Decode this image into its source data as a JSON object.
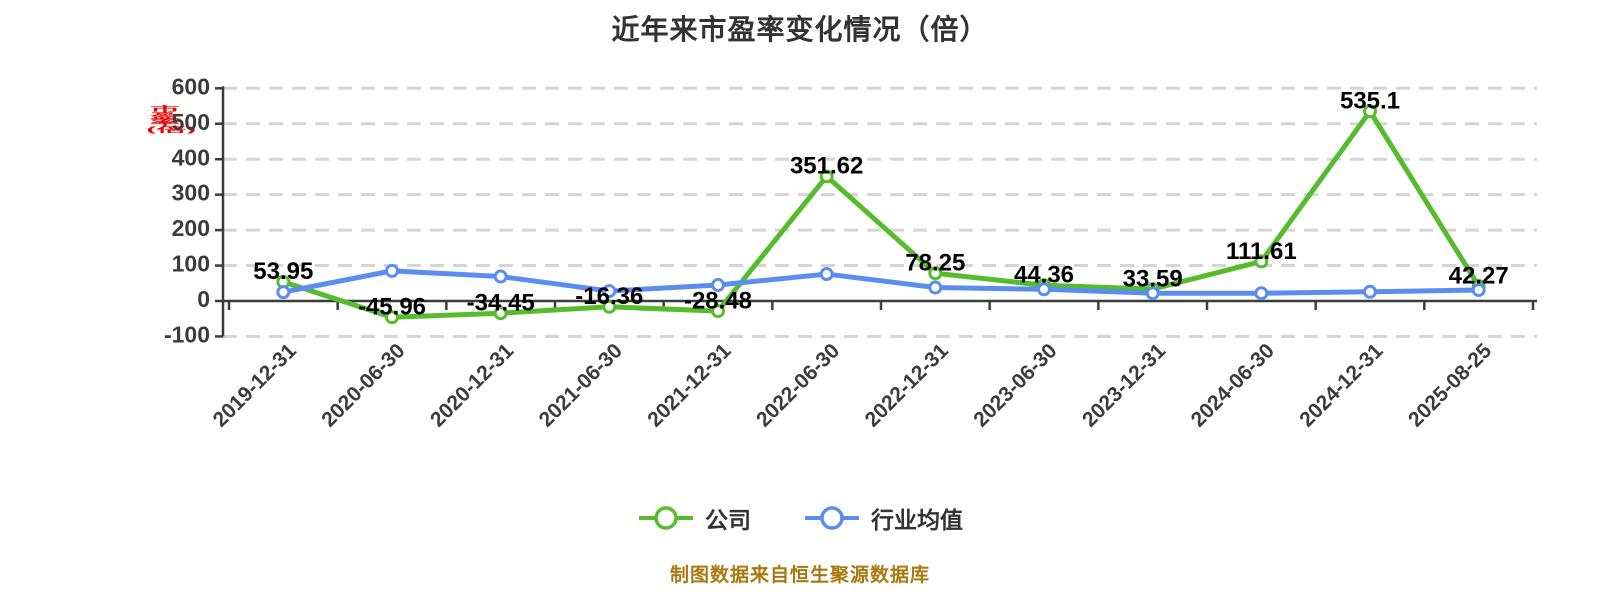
{
  "title": "近年来市盈率变化情况（倍）",
  "y_axis_label": "市盈率(倍)",
  "source_note": "制图数据来自恒生聚源数据库",
  "legend_items": [
    {
      "key": "company",
      "label": "公司",
      "color": "#55bd2b"
    },
    {
      "key": "industry",
      "label": "行业均值",
      "color": "#5b8cf0"
    }
  ],
  "colors": {
    "company": "#55bd2b",
    "industry": "#5b8cf0",
    "grid": "#d5d5d5",
    "axis": "#3c3c3c",
    "tick_text": "#3c3c3c",
    "title": "#333333",
    "data_label": "#000000",
    "source": "#a8790f",
    "y_axis_label": "#ee0000",
    "marker_fill": "#ffffff"
  },
  "chart_data": {
    "type": "line",
    "title": "近年来市盈率变化情况（倍）",
    "xlabel": "",
    "ylabel": "市盈率(倍)",
    "categories": [
      "2019-12-31",
      "2020-06-30",
      "2020-12-31",
      "2021-06-30",
      "2021-12-31",
      "2022-06-30",
      "2022-12-31",
      "2023-06-30",
      "2023-12-31",
      "2024-06-30",
      "2024-12-31",
      "2025-08-25"
    ],
    "series": [
      {
        "key": "company",
        "name": "公司",
        "color": "#55bd2b",
        "values": [
          53.95,
          -45.96,
          -34.45,
          -16.36,
          -28.48,
          351.62,
          78.25,
          44.36,
          33.59,
          111.61,
          535.1,
          42.27
        ],
        "labels": [
          "53.95",
          "-45.96",
          "-34.45",
          "-16.36",
          "-28.48",
          "351.62",
          "78.25",
          "44.36",
          "33.59",
          "111.61",
          "535.1",
          "42.27"
        ],
        "show_labels": true
      },
      {
        "key": "industry",
        "name": "行业均值",
        "color": "#5b8cf0",
        "values": [
          25,
          85,
          69,
          28,
          45,
          76,
          38,
          33,
          22,
          22,
          26,
          31
        ],
        "labels": [],
        "show_labels": false,
        "values_estimated_from_pixels": true
      }
    ],
    "yticks": [
      600,
      500,
      400,
      300,
      200,
      100,
      0,
      -100
    ],
    "ylim": [
      -100,
      600
    ],
    "grid": "horizontal-dashed",
    "legend_position": "bottom"
  }
}
